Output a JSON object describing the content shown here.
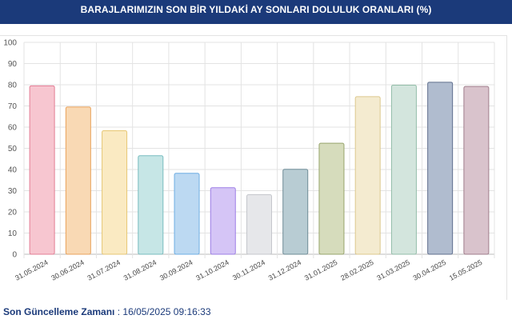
{
  "header": {
    "title": "BARAJLARIMIZIN SON BİR YILDAKİ AY SONLARI DOLULUK ORANLARI (%)"
  },
  "footer": {
    "label": "Son Güncelleme Zamanı",
    "separator": " : ",
    "value": "16/05/2025 09:16:33"
  },
  "colors": {
    "header_bg": "#1b3a7a",
    "footer_text": "#1b3a7a",
    "grid": "#e3e3e3"
  },
  "chart_data": {
    "type": "bar",
    "title": "BARAJLARIMIZIN SON BİR YILDAKİ AY SONLARI DOLULUK ORANLARI (%)",
    "xlabel": "",
    "ylabel": "",
    "ylim": [
      0,
      100
    ],
    "yticks": [
      0,
      10,
      20,
      30,
      40,
      50,
      60,
      70,
      80,
      90,
      100
    ],
    "grid": true,
    "categories": [
      "31.05.2024",
      "30.06.2024",
      "31.07.2024",
      "31.08.2024",
      "30.09.2024",
      "31.10.2024",
      "30.11.2024",
      "31.12.2024",
      "31.01.2025",
      "28.02.2025",
      "31.03.2025",
      "30.04.2025",
      "15.05.2025"
    ],
    "values": [
      79.5,
      69.5,
      58.3,
      46.5,
      38.2,
      31.4,
      28.1,
      40.1,
      52.4,
      74.4,
      79.8,
      81.2,
      79.2
    ],
    "fills": [
      "#f7c6d0",
      "#f9d9b4",
      "#faeac2",
      "#c6e6e6",
      "#bcd9f2",
      "#d5c5f6",
      "#e6e7ea",
      "#b8ccd3",
      "#d6dcbc",
      "#f4ebd0",
      "#d3e5dd",
      "#b0bccf",
      "#d9c3cc"
    ],
    "strokes": [
      "#e37d94",
      "#e9a35c",
      "#e7c774",
      "#78bcbf",
      "#6eaee4",
      "#9d7fe6",
      "#c5c7cc",
      "#6e8b96",
      "#97a46c",
      "#dcc88d",
      "#93bda9",
      "#5f6f8e",
      "#a07d8b"
    ]
  }
}
